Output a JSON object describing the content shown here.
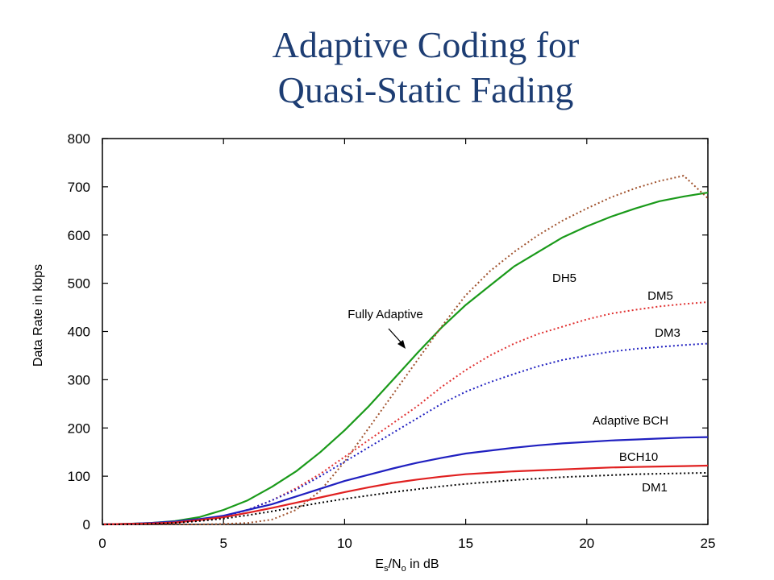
{
  "title_line1": "Adaptive Coding for",
  "title_line2": "Quasi-Static Fading",
  "chart_data": {
    "type": "line",
    "title": "Adaptive Coding for Quasi-Static Fading",
    "xlabel": "Es/No in dB",
    "xlabel_parts": [
      "E",
      "s",
      "/N",
      "o",
      " in dB"
    ],
    "ylabel": "Data Rate in kbps",
    "xlim": [
      0,
      25
    ],
    "ylim": [
      0,
      800
    ],
    "xticks": [
      0,
      5,
      10,
      15,
      20,
      25
    ],
    "yticks": [
      0,
      100,
      200,
      300,
      400,
      500,
      600,
      700,
      800
    ],
    "grid": false,
    "x": [
      0,
      1,
      2,
      3,
      4,
      5,
      6,
      7,
      8,
      9,
      10,
      11,
      12,
      13,
      14,
      15,
      16,
      17,
      18,
      19,
      20,
      21,
      22,
      23,
      24,
      25
    ],
    "series": [
      {
        "name": "Fully Adaptive",
        "color": "#1a9a1a",
        "style": "solid",
        "values": [
          0,
          1,
          3,
          7,
          15,
          30,
          50,
          78,
          110,
          150,
          195,
          245,
          300,
          355,
          408,
          455,
          495,
          535,
          565,
          595,
          618,
          638,
          655,
          670,
          680,
          688
        ]
      },
      {
        "name": "DH5",
        "color": "#a0522d",
        "style": "dotted",
        "values": [
          0,
          0,
          0,
          0,
          0,
          1,
          3,
          10,
          30,
          70,
          130,
          200,
          270,
          340,
          410,
          475,
          525,
          565,
          600,
          630,
          655,
          678,
          697,
          712,
          723,
          676
        ]
      },
      {
        "name": "DM5",
        "color": "#e03030",
        "style": "dotted",
        "values": [
          0,
          0,
          1,
          3,
          8,
          16,
          30,
          50,
          75,
          105,
          140,
          175,
          210,
          245,
          285,
          320,
          350,
          375,
          395,
          410,
          425,
          437,
          445,
          452,
          457,
          461
        ]
      },
      {
        "name": "DM3",
        "color": "#2020c0",
        "style": "dotted",
        "values": [
          0,
          0,
          1,
          3,
          8,
          16,
          30,
          50,
          72,
          100,
          130,
          160,
          190,
          220,
          250,
          275,
          295,
          312,
          328,
          341,
          350,
          358,
          364,
          368,
          372,
          375
        ]
      },
      {
        "name": "Adaptive BCH",
        "color": "#2020c0",
        "style": "solid",
        "values": [
          0,
          1,
          3,
          6,
          11,
          18,
          30,
          42,
          58,
          74,
          90,
          103,
          116,
          128,
          138,
          147,
          153,
          159,
          164,
          168,
          171,
          174,
          176,
          178,
          180,
          181
        ]
      },
      {
        "name": "BCH10",
        "color": "#e02020",
        "style": "solid",
        "values": [
          0,
          1,
          2,
          4,
          9,
          15,
          24,
          34,
          45,
          56,
          67,
          77,
          86,
          93,
          99,
          104,
          107,
          110,
          112,
          114,
          116,
          118,
          119,
          120,
          121,
          122
        ]
      },
      {
        "name": "DM1",
        "color": "#000000",
        "style": "dotted",
        "values": [
          0,
          0,
          1,
          3,
          7,
          12,
          19,
          27,
          36,
          45,
          53,
          60,
          67,
          73,
          79,
          84,
          88,
          92,
          95,
          98,
          100,
          102,
          104,
          105,
          106,
          107
        ]
      }
    ],
    "annotations": [
      {
        "text": "Fully Adaptive"
      },
      {
        "text": "DH5"
      },
      {
        "text": "DM5"
      },
      {
        "text": "DM3"
      },
      {
        "text": "Adaptive BCH"
      },
      {
        "text": "BCH10"
      },
      {
        "text": "DM1"
      }
    ]
  }
}
